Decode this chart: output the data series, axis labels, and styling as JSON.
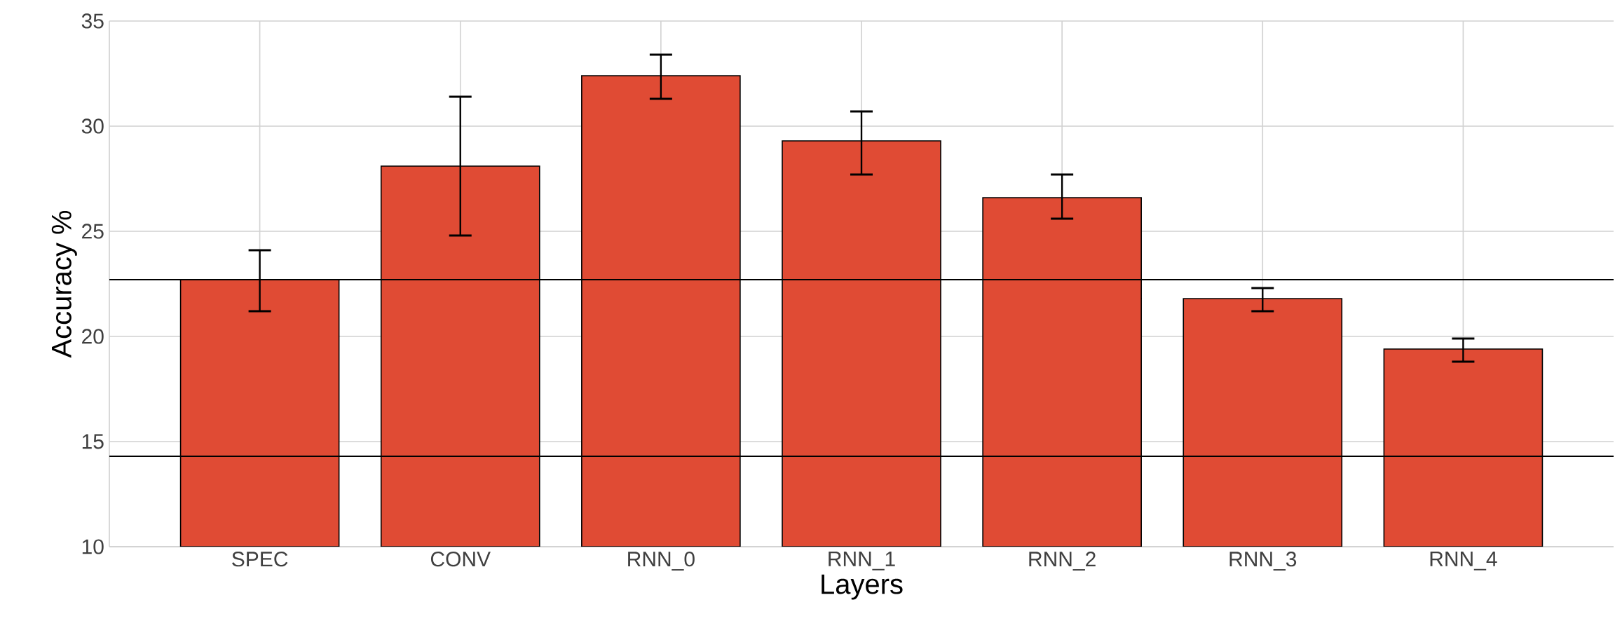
{
  "chart_data": {
    "type": "bar",
    "xlabel": "Layers",
    "ylabel": "Accuracy %",
    "categories": [
      "SPEC",
      "CONV",
      "RNN_0",
      "RNN_1",
      "RNN_2",
      "RNN_3",
      "RNN_4"
    ],
    "values": [
      22.7,
      28.1,
      32.4,
      29.3,
      26.6,
      21.8,
      19.4
    ],
    "errors": [
      [
        21.2,
        24.1
      ],
      [
        24.8,
        31.4
      ],
      [
        31.3,
        33.4
      ],
      [
        27.7,
        30.7
      ],
      [
        25.6,
        27.7
      ],
      [
        21.2,
        22.3
      ],
      [
        18.8,
        19.9
      ]
    ],
    "color": "#e04b34",
    "ylim": [
      10,
      35
    ],
    "yticks": [
      10,
      15,
      20,
      25,
      30,
      35
    ],
    "grid": true,
    "ref_lines": [
      {
        "axis": "y",
        "value": 22.7,
        "color": "#000000"
      },
      {
        "axis": "y",
        "value": 14.3,
        "color": "#000000"
      }
    ]
  }
}
